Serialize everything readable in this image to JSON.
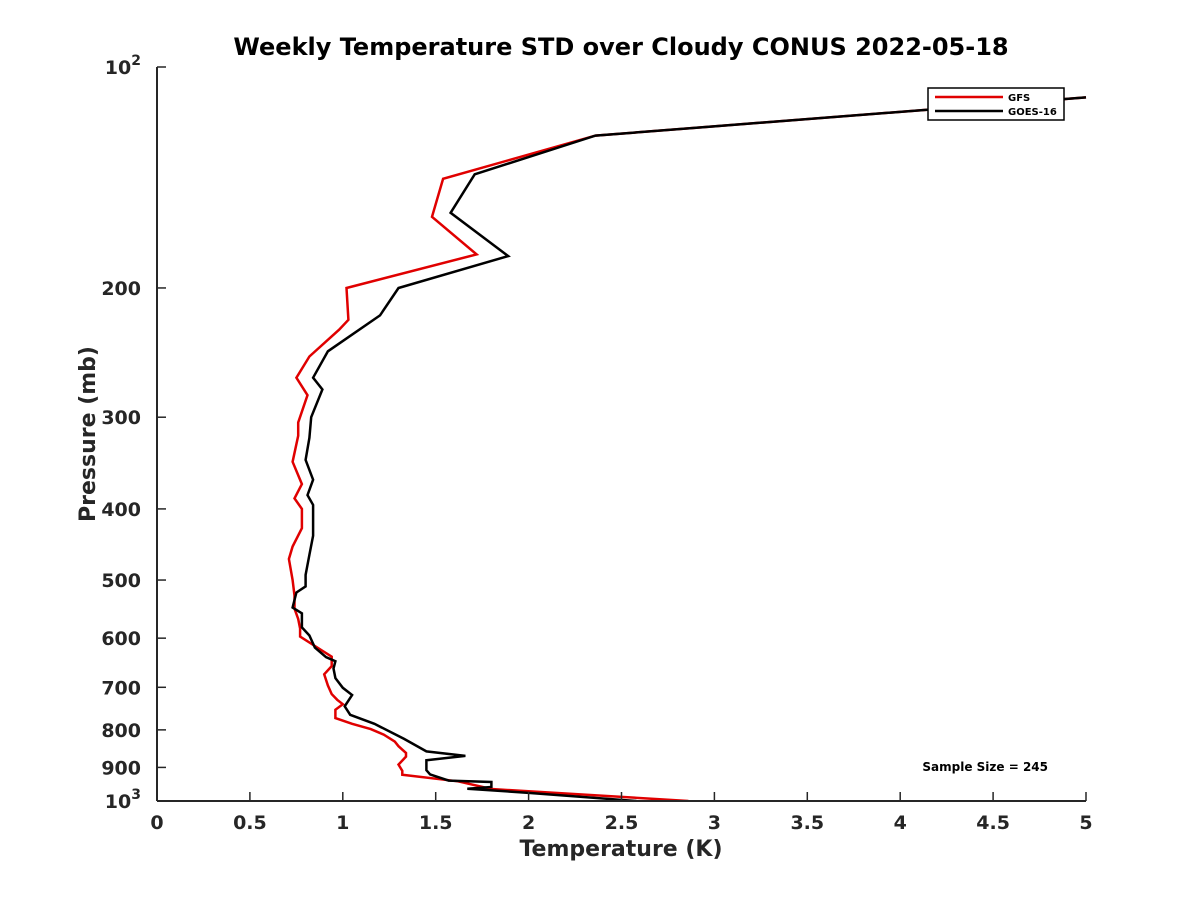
{
  "chart_data": {
    "type": "line",
    "title": "Weekly Temperature STD over Cloudy CONUS 2022-05-18",
    "xlabel": "Temperature (K)",
    "ylabel": "Pressure (mb)",
    "xlim": [
      0,
      5
    ],
    "ylim": [
      100,
      1000
    ],
    "y_scale": "log",
    "y_reversed": true,
    "grid": false,
    "legend_position": "top-right",
    "x_ticks": [
      "0",
      "0.5",
      "1",
      "1.5",
      "2",
      "2.5",
      "3",
      "3.5",
      "4",
      "4.5",
      "5"
    ],
    "x_tick_values": [
      0,
      0.5,
      1,
      1.5,
      2,
      2.5,
      3,
      3.5,
      4,
      4.5,
      5
    ],
    "y_ticks": [
      {
        "value": 100,
        "base": "10",
        "exp": "2"
      },
      {
        "value": 200,
        "label": "200"
      },
      {
        "value": 300,
        "label": "300"
      },
      {
        "value": 400,
        "label": "400"
      },
      {
        "value": 500,
        "label": "500"
      },
      {
        "value": 600,
        "label": "600"
      },
      {
        "value": 700,
        "label": "700"
      },
      {
        "value": 800,
        "label": "800"
      },
      {
        "value": 900,
        "label": "900"
      },
      {
        "value": 1000,
        "base": "10",
        "exp": "3"
      }
    ],
    "series": [
      {
        "name": "GFS",
        "color": "#e00000",
        "points": [
          [
            2.86,
            1000
          ],
          [
            1.8,
            963
          ],
          [
            1.62,
            940
          ],
          [
            1.32,
            921
          ],
          [
            1.32,
            910
          ],
          [
            1.3,
            892
          ],
          [
            1.34,
            870
          ],
          [
            1.34,
            860
          ],
          [
            1.3,
            842
          ],
          [
            1.28,
            830
          ],
          [
            1.22,
            812
          ],
          [
            1.15,
            798
          ],
          [
            1.05,
            785
          ],
          [
            0.96,
            771
          ],
          [
            0.96,
            751
          ],
          [
            1.0,
            738
          ],
          [
            0.97,
            728
          ],
          [
            0.94,
            715
          ],
          [
            0.92,
            696
          ],
          [
            0.9,
            672
          ],
          [
            0.94,
            655
          ],
          [
            0.94,
            636
          ],
          [
            0.85,
            615
          ],
          [
            0.77,
            597
          ],
          [
            0.77,
            582
          ],
          [
            0.76,
            565
          ],
          [
            0.74,
            547
          ],
          [
            0.74,
            525
          ],
          [
            0.73,
            500
          ],
          [
            0.71,
            468
          ],
          [
            0.73,
            450
          ],
          [
            0.78,
            425
          ],
          [
            0.78,
            400
          ],
          [
            0.74,
            387
          ],
          [
            0.78,
            370
          ],
          [
            0.73,
            345
          ],
          [
            0.76,
            318
          ],
          [
            0.76,
            305
          ],
          [
            0.81,
            280
          ],
          [
            0.75,
            265
          ],
          [
            0.82,
            248
          ],
          [
            0.98,
            228
          ],
          [
            1.03,
            221
          ],
          [
            1.02,
            200
          ],
          [
            1.72,
            180
          ],
          [
            1.48,
            160
          ],
          [
            1.54,
            142
          ],
          [
            2.36,
            124
          ],
          [
            5.0,
            110
          ]
        ]
      },
      {
        "name": "GOES-16",
        "color": "#000000",
        "points": [
          [
            2.58,
            1000
          ],
          [
            2.0,
            975
          ],
          [
            1.67,
            962
          ],
          [
            1.8,
            957
          ],
          [
            1.8,
            942
          ],
          [
            1.57,
            938
          ],
          [
            1.47,
            920
          ],
          [
            1.45,
            908
          ],
          [
            1.45,
            880
          ],
          [
            1.66,
            868
          ],
          [
            1.45,
            856
          ],
          [
            1.33,
            823
          ],
          [
            1.17,
            785
          ],
          [
            1.04,
            763
          ],
          [
            1.01,
            743
          ],
          [
            1.05,
            717
          ],
          [
            1.0,
            701
          ],
          [
            0.96,
            680
          ],
          [
            0.95,
            660
          ],
          [
            0.96,
            645
          ],
          [
            0.91,
            637
          ],
          [
            0.85,
            618
          ],
          [
            0.82,
            595
          ],
          [
            0.78,
            580
          ],
          [
            0.78,
            555
          ],
          [
            0.73,
            545
          ],
          [
            0.75,
            520
          ],
          [
            0.8,
            510
          ],
          [
            0.8,
            492
          ],
          [
            0.82,
            462
          ],
          [
            0.84,
            435
          ],
          [
            0.84,
            395
          ],
          [
            0.81,
            383
          ],
          [
            0.84,
            365
          ],
          [
            0.8,
            343
          ],
          [
            0.82,
            320
          ],
          [
            0.83,
            300
          ],
          [
            0.89,
            275
          ],
          [
            0.84,
            265
          ],
          [
            0.92,
            244
          ],
          [
            1.2,
            218
          ],
          [
            1.3,
            200
          ],
          [
            1.89,
            181
          ],
          [
            1.58,
            158
          ],
          [
            1.71,
            140
          ],
          [
            2.36,
            124
          ],
          [
            5.0,
            110
          ]
        ]
      }
    ],
    "annotation": "Sample Size = 245"
  }
}
